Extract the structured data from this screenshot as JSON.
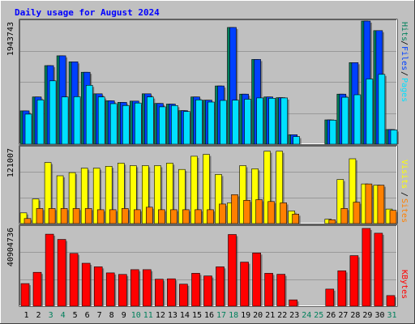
{
  "title": "Daily usage for August 2024",
  "colors": {
    "background": "#c0c0c0",
    "plot": "#c0c0c0",
    "title": "#0000ff",
    "hits": "#00805c",
    "files": "#0040ff",
    "pages": "#00e0ff",
    "visits": "#ffff00",
    "sites": "#ff8000",
    "kbytes": "#ff0000",
    "weekday_label": "#000000",
    "weekend_label": "#00805c",
    "grid": "#999999"
  },
  "chart_data": [
    {
      "type": "bar",
      "panel": "hits-files-pages",
      "categories": [
        "1",
        "2",
        "3",
        "4",
        "5",
        "6",
        "7",
        "8",
        "9",
        "10",
        "11",
        "12",
        "13",
        "14",
        "15",
        "16",
        "17",
        "18",
        "19",
        "20",
        "21",
        "22",
        "23",
        "24",
        "25",
        "26",
        "27",
        "28",
        "29",
        "30",
        "31"
      ],
      "weekend": [
        false,
        false,
        true,
        true,
        false,
        false,
        false,
        false,
        false,
        true,
        true,
        false,
        false,
        false,
        false,
        false,
        true,
        true,
        false,
        false,
        false,
        false,
        false,
        true,
        true,
        false,
        false,
        false,
        false,
        false,
        true
      ],
      "ymax_label": "1943743",
      "ylim": [
        0,
        1943743
      ],
      "grid": true,
      "series": [
        {
          "name": "Hits",
          "values": [
            525000,
            745000,
            1240000,
            1395000,
            1300000,
            1135000,
            795000,
            685000,
            660000,
            680000,
            795000,
            643000,
            633000,
            530000,
            745000,
            695000,
            920000,
            1843000,
            790000,
            1338000,
            745000,
            734000,
            150000,
            0,
            0,
            383000,
            790000,
            1288000,
            1943743,
            1793000,
            232000
          ]
        },
        {
          "name": "Files",
          "values": [
            525000,
            745000,
            1240000,
            1395000,
            1300000,
            1135000,
            795000,
            685000,
            660000,
            680000,
            795000,
            643000,
            633000,
            530000,
            745000,
            695000,
            920000,
            1843000,
            790000,
            1338000,
            745000,
            734000,
            150000,
            0,
            0,
            383000,
            790000,
            1288000,
            1943743,
            1793000,
            232000
          ]
        },
        {
          "name": "Pages",
          "values": [
            475000,
            700000,
            1000000,
            745000,
            750000,
            930000,
            745000,
            640000,
            610000,
            650000,
            745000,
            590000,
            610000,
            515000,
            700000,
            665000,
            690000,
            694000,
            710000,
            730000,
            725000,
            730000,
            120000,
            0,
            0,
            380000,
            740000,
            780000,
            1030000,
            1102000,
            225000
          ]
        }
      ]
    },
    {
      "type": "bar",
      "panel": "visits-sites",
      "categories": [
        "1",
        "2",
        "3",
        "4",
        "5",
        "6",
        "7",
        "8",
        "9",
        "10",
        "11",
        "12",
        "13",
        "14",
        "15",
        "16",
        "17",
        "18",
        "19",
        "20",
        "21",
        "22",
        "23",
        "24",
        "25",
        "26",
        "27",
        "28",
        "29",
        "30",
        "31"
      ],
      "ymax_label": "121007",
      "ylim": [
        0,
        121007
      ],
      "grid": true,
      "series": [
        {
          "name": "Visits",
          "values": [
            17000,
            39000,
            97000,
            76000,
            81000,
            88000,
            88000,
            91000,
            96000,
            92000,
            92000,
            92000,
            96000,
            86000,
            107000,
            110000,
            78000,
            33000,
            92000,
            87000,
            115000,
            115000,
            20000,
            0,
            0,
            7000,
            70000,
            103000,
            63000,
            61000,
            23000
          ]
        },
        {
          "name": "Sites",
          "values": [
            8000,
            24000,
            24000,
            24000,
            24000,
            24000,
            22000,
            22000,
            24000,
            22000,
            26000,
            22000,
            22000,
            22000,
            22000,
            22000,
            31000,
            46000,
            37000,
            38000,
            35000,
            33000,
            15000,
            0,
            0,
            6000,
            24000,
            34000,
            63000,
            61000,
            21000
          ]
        }
      ]
    },
    {
      "type": "bar",
      "panel": "kbytes",
      "categories": [
        "1",
        "2",
        "3",
        "4",
        "5",
        "6",
        "7",
        "8",
        "9",
        "10",
        "11",
        "12",
        "13",
        "14",
        "15",
        "16",
        "17",
        "18",
        "19",
        "20",
        "21",
        "22",
        "23",
        "24",
        "25",
        "26",
        "27",
        "28",
        "29",
        "30",
        "31"
      ],
      "ymax_label": "40904736",
      "ylim": [
        0,
        40904736
      ],
      "grid": true,
      "series": [
        {
          "name": "KBytes",
          "values": [
            11900000,
            17800000,
            37900000,
            35100000,
            27800000,
            22600000,
            20700000,
            17500000,
            16700000,
            19200000,
            19200000,
            14200000,
            14400000,
            11600000,
            17300000,
            15900000,
            20700000,
            37700000,
            23200000,
            28000000,
            17300000,
            16800000,
            3330000,
            0,
            0,
            9000000,
            18600000,
            26600000,
            40904736,
            38400000,
            5600000
          ]
        }
      ]
    }
  ]
}
